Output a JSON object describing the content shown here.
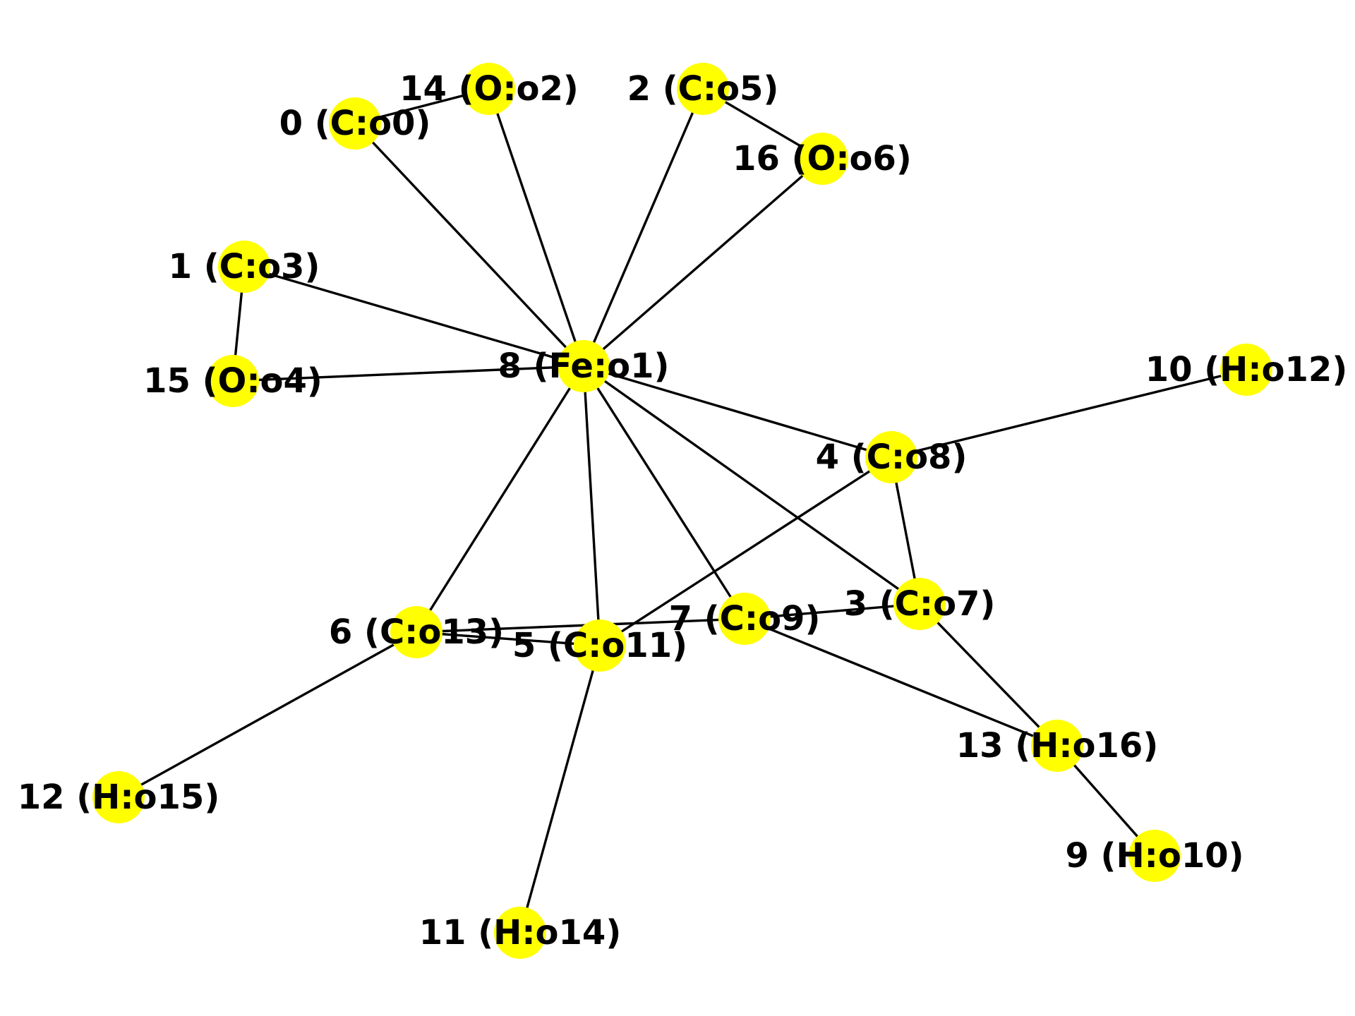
{
  "graph": {
    "node_color": "#ffff00",
    "edge_color": "#000000",
    "label_color": "#000000",
    "nodes": [
      {
        "id": "0",
        "label": "0 (C:o0)"
      },
      {
        "id": "1",
        "label": "1 (C:o3)"
      },
      {
        "id": "2",
        "label": "2 (C:o5)"
      },
      {
        "id": "3",
        "label": "3 (C:o7)"
      },
      {
        "id": "4",
        "label": "4 (C:o8)"
      },
      {
        "id": "5",
        "label": "5 (C:o11)"
      },
      {
        "id": "6",
        "label": "6 (C:o13)"
      },
      {
        "id": "7",
        "label": "7 (C:o9)"
      },
      {
        "id": "8",
        "label": "8 (Fe:o1)"
      },
      {
        "id": "9",
        "label": "9 (H:o10)"
      },
      {
        "id": "10",
        "label": "10 (H:o12)"
      },
      {
        "id": "11",
        "label": "11 (H:o14)"
      },
      {
        "id": "12",
        "label": "12 (H:o15)"
      },
      {
        "id": "13",
        "label": "13 (H:o16)"
      },
      {
        "id": "14",
        "label": "14 (O:o2)"
      },
      {
        "id": "15",
        "label": "15 (O:o4)"
      },
      {
        "id": "16",
        "label": "16 (O:o6)"
      }
    ],
    "edges": [
      [
        "0",
        "14"
      ],
      [
        "0",
        "8"
      ],
      [
        "14",
        "8"
      ],
      [
        "2",
        "16"
      ],
      [
        "2",
        "8"
      ],
      [
        "16",
        "8"
      ],
      [
        "1",
        "15"
      ],
      [
        "1",
        "8"
      ],
      [
        "15",
        "8"
      ],
      [
        "8",
        "4"
      ],
      [
        "8",
        "3"
      ],
      [
        "8",
        "7"
      ],
      [
        "8",
        "5"
      ],
      [
        "8",
        "6"
      ],
      [
        "4",
        "10"
      ],
      [
        "4",
        "3"
      ],
      [
        "4",
        "5"
      ],
      [
        "3",
        "7"
      ],
      [
        "3",
        "13"
      ],
      [
        "7",
        "6"
      ],
      [
        "7",
        "13"
      ],
      [
        "13",
        "9"
      ],
      [
        "6",
        "5"
      ],
      [
        "6",
        "12"
      ],
      [
        "5",
        "11"
      ]
    ]
  }
}
